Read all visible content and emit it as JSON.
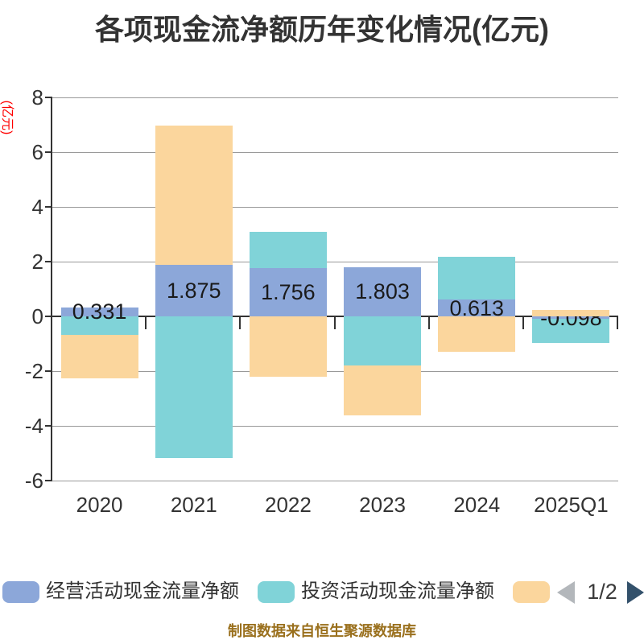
{
  "title": "各项现金流净额历年变化情况(亿元)",
  "y_axis": {
    "unit_label": "(亿元)",
    "unit_label_color": "#ff0000",
    "ticks": [
      "8",
      "6",
      "4",
      "2",
      "0",
      "-2",
      "-4",
      "-6"
    ],
    "tick_values": [
      8,
      6,
      4,
      2,
      0,
      -2,
      -4,
      -6
    ]
  },
  "legend": {
    "items": [
      {
        "label": "经营活动现金流量净额",
        "color": "#8ca7d9"
      },
      {
        "label": "投资活动现金流量净额",
        "color": "#80d3d8"
      },
      {
        "label": "",
        "color": "#fbd69d"
      }
    ],
    "pagination": {
      "current": "1/2",
      "prev_icon_color": "#b3b7bb",
      "next_icon_color": "#33516b"
    }
  },
  "footer": {
    "note": "制图数据来自恒生聚源数据库"
  },
  "colors": {
    "axis": "#333333",
    "grid": "#999999",
    "tick_label": "#333333",
    "bar_label": "#1a1a1a",
    "footer_text": "#9a701d"
  },
  "chart_data": {
    "type": "bar",
    "stacked": true,
    "title": "各项现金流净额历年变化情况(亿元)",
    "categories": [
      "2020",
      "2021",
      "2022",
      "2023",
      "2024",
      "2025Q1"
    ],
    "series": [
      {
        "name": "经营活动现金流量净额",
        "color": "#8ca7d9",
        "values": [
          0.331,
          1.875,
          1.756,
          1.803,
          0.613,
          -0.098
        ],
        "labels": [
          "0.331",
          "1.875",
          "1.756",
          "1.803",
          "0.613",
          "-0.098"
        ]
      },
      {
        "name": "投资活动现金流量净额",
        "color": "#80d3d8",
        "values": [
          -0.68,
          -5.19,
          1.32,
          -1.79,
          1.57,
          -0.87
        ]
      },
      {
        "name": "",
        "color": "#fbd69d",
        "values": [
          -1.58,
          5.1,
          -2.21,
          -1.82,
          -1.28,
          0.24
        ]
      }
    ],
    "ylabel": "(亿元)",
    "ylim": [
      -6,
      8
    ],
    "ytick_interval": 2,
    "grid": true,
    "legend_position": "bottom",
    "legend_page": "1/2"
  }
}
